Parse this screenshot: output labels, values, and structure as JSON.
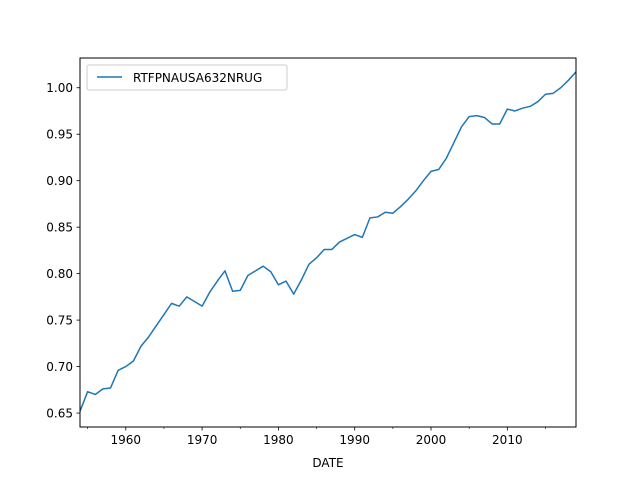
{
  "chart_data": {
    "type": "line",
    "title": "",
    "xlabel": "DATE",
    "ylabel": "",
    "xlim": [
      1954,
      2019
    ],
    "ylim": [
      0.635,
      1.032
    ],
    "x_ticks": [
      1960,
      1970,
      1980,
      1990,
      2000,
      2010
    ],
    "x_tick_labels": [
      "1960",
      "1970",
      "1980",
      "1990",
      "2000",
      "2010"
    ],
    "y_ticks": [
      0.65,
      0.7,
      0.75,
      0.8,
      0.85,
      0.9,
      0.95,
      1.0
    ],
    "y_tick_labels": [
      "0.65",
      "0.70",
      "0.75",
      "0.80",
      "0.85",
      "0.90",
      "0.95",
      "1.00"
    ],
    "grid": false,
    "legend_position": "upper-left",
    "series": [
      {
        "name": "RTFPNAUSA632NRUG",
        "color": "#1f77b4",
        "x": [
          1954,
          1955,
          1956,
          1957,
          1958,
          1959,
          1960,
          1961,
          1962,
          1963,
          1964,
          1965,
          1966,
          1967,
          1968,
          1969,
          1970,
          1971,
          1972,
          1973,
          1974,
          1975,
          1976,
          1977,
          1978,
          1979,
          1980,
          1981,
          1982,
          1983,
          1984,
          1985,
          1986,
          1987,
          1988,
          1989,
          1990,
          1991,
          1992,
          1993,
          1994,
          1995,
          1996,
          1997,
          1998,
          1999,
          2000,
          2001,
          2002,
          2003,
          2004,
          2005,
          2006,
          2007,
          2008,
          2009,
          2010,
          2011,
          2012,
          2013,
          2014,
          2015,
          2016,
          2017,
          2018,
          2019
        ],
        "values": [
          0.652,
          0.673,
          0.67,
          0.676,
          0.677,
          0.696,
          0.7,
          0.706,
          0.722,
          0.732,
          0.744,
          0.756,
          0.768,
          0.765,
          0.775,
          0.77,
          0.765,
          0.78,
          0.792,
          0.803,
          0.781,
          0.782,
          0.798,
          0.803,
          0.808,
          0.802,
          0.788,
          0.792,
          0.778,
          0.793,
          0.81,
          0.817,
          0.826,
          0.826,
          0.834,
          0.838,
          0.842,
          0.839,
          0.86,
          0.861,
          0.866,
          0.865,
          0.872,
          0.88,
          0.889,
          0.9,
          0.91,
          0.912,
          0.924,
          0.941,
          0.958,
          0.969,
          0.97,
          0.968,
          0.961,
          0.961,
          0.977,
          0.975,
          0.978,
          0.98,
          0.985,
          0.993,
          0.994,
          1.0,
          1.008,
          1.017
        ]
      }
    ]
  }
}
